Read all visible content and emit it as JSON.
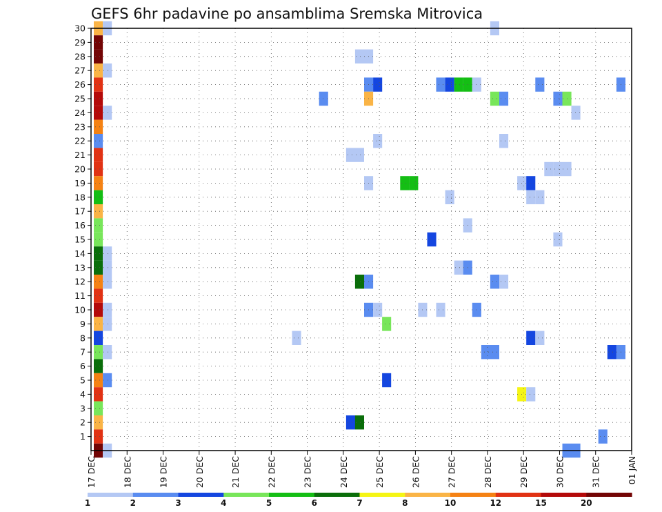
{
  "chart_data": {
    "type": "heatmap",
    "title": "GEFS 6hr padavine po ansamblima Sremska Mitrovica",
    "xlabel": "",
    "ylabel": "",
    "x_tick_labels": [
      "17 DEC",
      "18 DEC",
      "19 DEC",
      "20 DEC",
      "21 DEC",
      "22 DEC",
      "23 DEC",
      "24 DEC",
      "25 DEC",
      "26 DEC",
      "27 DEC",
      "28 DEC",
      "29 DEC",
      "30 DEC",
      "31 DEC",
      "01 JAN"
    ],
    "y_tick_labels": [
      "1",
      "2",
      "3",
      "4",
      "5",
      "6",
      "7",
      "8",
      "9",
      "10",
      "11",
      "12",
      "13",
      "14",
      "15",
      "16",
      "17",
      "18",
      "19",
      "20",
      "21",
      "22",
      "23",
      "24",
      "25",
      "26",
      "27",
      "28",
      "29",
      "30"
    ],
    "xlim_days": [
      0,
      15
    ],
    "ylim": [
      0,
      30
    ],
    "grid": true,
    "colorbar": {
      "labels": [
        "1",
        "2",
        "3",
        "4",
        "5",
        "6",
        "7",
        "8",
        "10",
        "12",
        "15",
        "20"
      ],
      "colors": [
        "#b4c8f4",
        "#5a8cf0",
        "#1446e0",
        "#78e65a",
        "#14be14",
        "#0a6e0a",
        "#f5f514",
        "#fab446",
        "#f58214",
        "#e13214",
        "#b40a0a",
        "#730505"
      ]
    },
    "points": [
      {
        "member": 30,
        "day": 0.0,
        "level": 8
      },
      {
        "member": 29,
        "day": 0.0,
        "level": 12
      },
      {
        "member": 28,
        "day": 0.0,
        "level": 12
      },
      {
        "member": 27,
        "day": 0.0,
        "level": 8
      },
      {
        "member": 26,
        "day": 0.0,
        "level": 10
      },
      {
        "member": 25,
        "day": 0.0,
        "level": 11
      },
      {
        "member": 24,
        "day": 0.0,
        "level": 11
      },
      {
        "member": 23,
        "day": 0.0,
        "level": 9
      },
      {
        "member": 22,
        "day": 0.0,
        "level": 2
      },
      {
        "member": 21,
        "day": 0.0,
        "level": 10
      },
      {
        "member": 20,
        "day": 0.0,
        "level": 10
      },
      {
        "member": 19,
        "day": 0.0,
        "level": 9
      },
      {
        "member": 18,
        "day": 0.0,
        "level": 5
      },
      {
        "member": 17,
        "day": 0.0,
        "level": 8
      },
      {
        "member": 16,
        "day": 0.0,
        "level": 4
      },
      {
        "member": 15,
        "day": 0.0,
        "level": 4
      },
      {
        "member": 14,
        "day": 0.0,
        "level": 6
      },
      {
        "member": 13,
        "day": 0.0,
        "level": 6
      },
      {
        "member": 12,
        "day": 0.0,
        "level": 9
      },
      {
        "member": 11,
        "day": 0.0,
        "level": 10
      },
      {
        "member": 10,
        "day": 0.0,
        "level": 11
      },
      {
        "member": 9,
        "day": 0.0,
        "level": 8
      },
      {
        "member": 8,
        "day": 0.0,
        "level": 3
      },
      {
        "member": 7,
        "day": 0.0,
        "level": 4
      },
      {
        "member": 6,
        "day": 0.0,
        "level": 6
      },
      {
        "member": 5,
        "day": 0.0,
        "level": 9
      },
      {
        "member": 4,
        "day": 0.0,
        "level": 10
      },
      {
        "member": 3,
        "day": 0.0,
        "level": 4
      },
      {
        "member": 2,
        "day": 0.0,
        "level": 8
      },
      {
        "member": 1,
        "day": 0.0,
        "level": 10
      },
      {
        "member": 0,
        "day": 0.0,
        "level": 12
      },
      {
        "member": 30,
        "day": 0.25,
        "level": 1
      },
      {
        "member": 27,
        "day": 0.25,
        "level": 1
      },
      {
        "member": 24,
        "day": 0.25,
        "level": 1
      },
      {
        "member": 14,
        "day": 0.25,
        "level": 1
      },
      {
        "member": 13,
        "day": 0.25,
        "level": 1
      },
      {
        "member": 12,
        "day": 0.25,
        "level": 1
      },
      {
        "member": 10,
        "day": 0.25,
        "level": 1
      },
      {
        "member": 9,
        "day": 0.25,
        "level": 1
      },
      {
        "member": 7,
        "day": 0.25,
        "level": 1
      },
      {
        "member": 5,
        "day": 0.25,
        "level": 2
      },
      {
        "member": 0,
        "day": 0.25,
        "level": 1
      },
      {
        "member": 8,
        "day": 5.5,
        "level": 1
      },
      {
        "member": 25,
        "day": 6.25,
        "level": 2
      },
      {
        "member": 21,
        "day": 7.0,
        "level": 1
      },
      {
        "member": 21,
        "day": 7.25,
        "level": 1
      },
      {
        "member": 2,
        "day": 7.0,
        "level": 3
      },
      {
        "member": 2,
        "day": 7.25,
        "level": 6
      },
      {
        "member": 12,
        "day": 7.25,
        "level": 6
      },
      {
        "member": 28,
        "day": 7.25,
        "level": 1
      },
      {
        "member": 28,
        "day": 7.5,
        "level": 1
      },
      {
        "member": 26,
        "day": 7.5,
        "level": 2
      },
      {
        "member": 26,
        "day": 7.75,
        "level": 3
      },
      {
        "member": 25,
        "day": 7.5,
        "level": 8
      },
      {
        "member": 19,
        "day": 7.5,
        "level": 1
      },
      {
        "member": 12,
        "day": 7.5,
        "level": 2
      },
      {
        "member": 10,
        "day": 7.5,
        "level": 2
      },
      {
        "member": 10,
        "day": 7.75,
        "level": 1
      },
      {
        "member": 22,
        "day": 7.75,
        "level": 1
      },
      {
        "member": 9,
        "day": 8.0,
        "level": 4
      },
      {
        "member": 5,
        "day": 8.0,
        "level": 3
      },
      {
        "member": 19,
        "day": 8.5,
        "level": 5
      },
      {
        "member": 19,
        "day": 8.75,
        "level": 5
      },
      {
        "member": 10,
        "day": 9.0,
        "level": 1
      },
      {
        "member": 15,
        "day": 9.25,
        "level": 3
      },
      {
        "member": 26,
        "day": 9.5,
        "level": 2
      },
      {
        "member": 26,
        "day": 9.75,
        "level": 3
      },
      {
        "member": 26,
        "day": 10.0,
        "level": 5
      },
      {
        "member": 26,
        "day": 10.25,
        "level": 5
      },
      {
        "member": 26,
        "day": 10.5,
        "level": 1
      },
      {
        "member": 10,
        "day": 9.5,
        "level": 1
      },
      {
        "member": 18,
        "day": 9.75,
        "level": 1
      },
      {
        "member": 13,
        "day": 10.0,
        "level": 1
      },
      {
        "member": 13,
        "day": 10.25,
        "level": 2
      },
      {
        "member": 16,
        "day": 10.25,
        "level": 1
      },
      {
        "member": 10,
        "day": 10.5,
        "level": 2
      },
      {
        "member": 7,
        "day": 10.75,
        "level": 2
      },
      {
        "member": 7,
        "day": 11.0,
        "level": 2
      },
      {
        "member": 25,
        "day": 11.0,
        "level": 4
      },
      {
        "member": 25,
        "day": 11.25,
        "level": 2
      },
      {
        "member": 12,
        "day": 11.0,
        "level": 2
      },
      {
        "member": 12,
        "day": 11.25,
        "level": 1
      },
      {
        "member": 22,
        "day": 11.25,
        "level": 1
      },
      {
        "member": 4,
        "day": 11.75,
        "level": 7
      },
      {
        "member": 4,
        "day": 12.0,
        "level": 1
      },
      {
        "member": 19,
        "day": 11.75,
        "level": 1
      },
      {
        "member": 19,
        "day": 12.0,
        "level": 3
      },
      {
        "member": 8,
        "day": 12.0,
        "level": 3
      },
      {
        "member": 8,
        "day": 12.25,
        "level": 1
      },
      {
        "member": 18,
        "day": 12.0,
        "level": 1
      },
      {
        "member": 18,
        "day": 12.25,
        "level": 1
      },
      {
        "member": 26,
        "day": 12.25,
        "level": 2
      },
      {
        "member": 25,
        "day": 12.75,
        "level": 2
      },
      {
        "member": 25,
        "day": 13.0,
        "level": 4
      },
      {
        "member": 15,
        "day": 12.75,
        "level": 1
      },
      {
        "member": 20,
        "day": 12.5,
        "level": 1
      },
      {
        "member": 20,
        "day": 12.75,
        "level": 1
      },
      {
        "member": 20,
        "day": 13.0,
        "level": 1
      },
      {
        "member": 24,
        "day": 13.25,
        "level": 1
      },
      {
        "member": 0,
        "day": 13.0,
        "level": 2
      },
      {
        "member": 0,
        "day": 13.25,
        "level": 2
      },
      {
        "member": 1,
        "day": 14.0,
        "level": 2
      },
      {
        "member": 7,
        "day": 14.25,
        "level": 3
      },
      {
        "member": 7,
        "day": 14.5,
        "level": 2
      },
      {
        "member": 26,
        "day": 14.5,
        "level": 2
      },
      {
        "member": 30,
        "day": 11.0,
        "level": 1
      }
    ]
  }
}
